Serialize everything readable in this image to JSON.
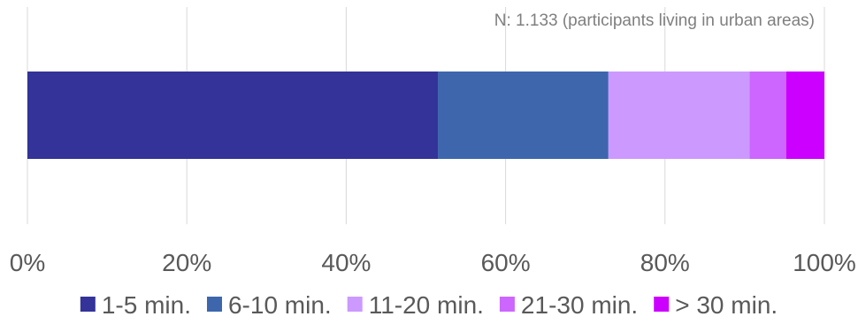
{
  "chart_data": {
    "type": "bar",
    "orientation": "horizontal",
    "stacked": true,
    "normalized": true,
    "title": "",
    "annotation": "N: 1.133 (participants living in urban areas)",
    "xlabel": "",
    "ylabel": "",
    "categories": [
      ""
    ],
    "xlim": [
      0,
      100
    ],
    "ticks": [
      "0%",
      "20%",
      "40%",
      "60%",
      "80%",
      "100%"
    ],
    "grid": true,
    "legend_position": "bottom",
    "series": [
      {
        "name": "1-5 min.",
        "values": [
          51.5
        ],
        "color": "#333399"
      },
      {
        "name": "6-10 min.",
        "values": [
          21.4
        ],
        "color": "#3d66ad"
      },
      {
        "name": "11-20 min.",
        "values": [
          17.7
        ],
        "color": "#cc99ff"
      },
      {
        "name": "21-30 min.",
        "values": [
          4.6
        ],
        "color": "#cc66ff"
      },
      {
        "name": "> 30 min.",
        "values": [
          4.8
        ],
        "color": "#cc00ff"
      }
    ]
  }
}
